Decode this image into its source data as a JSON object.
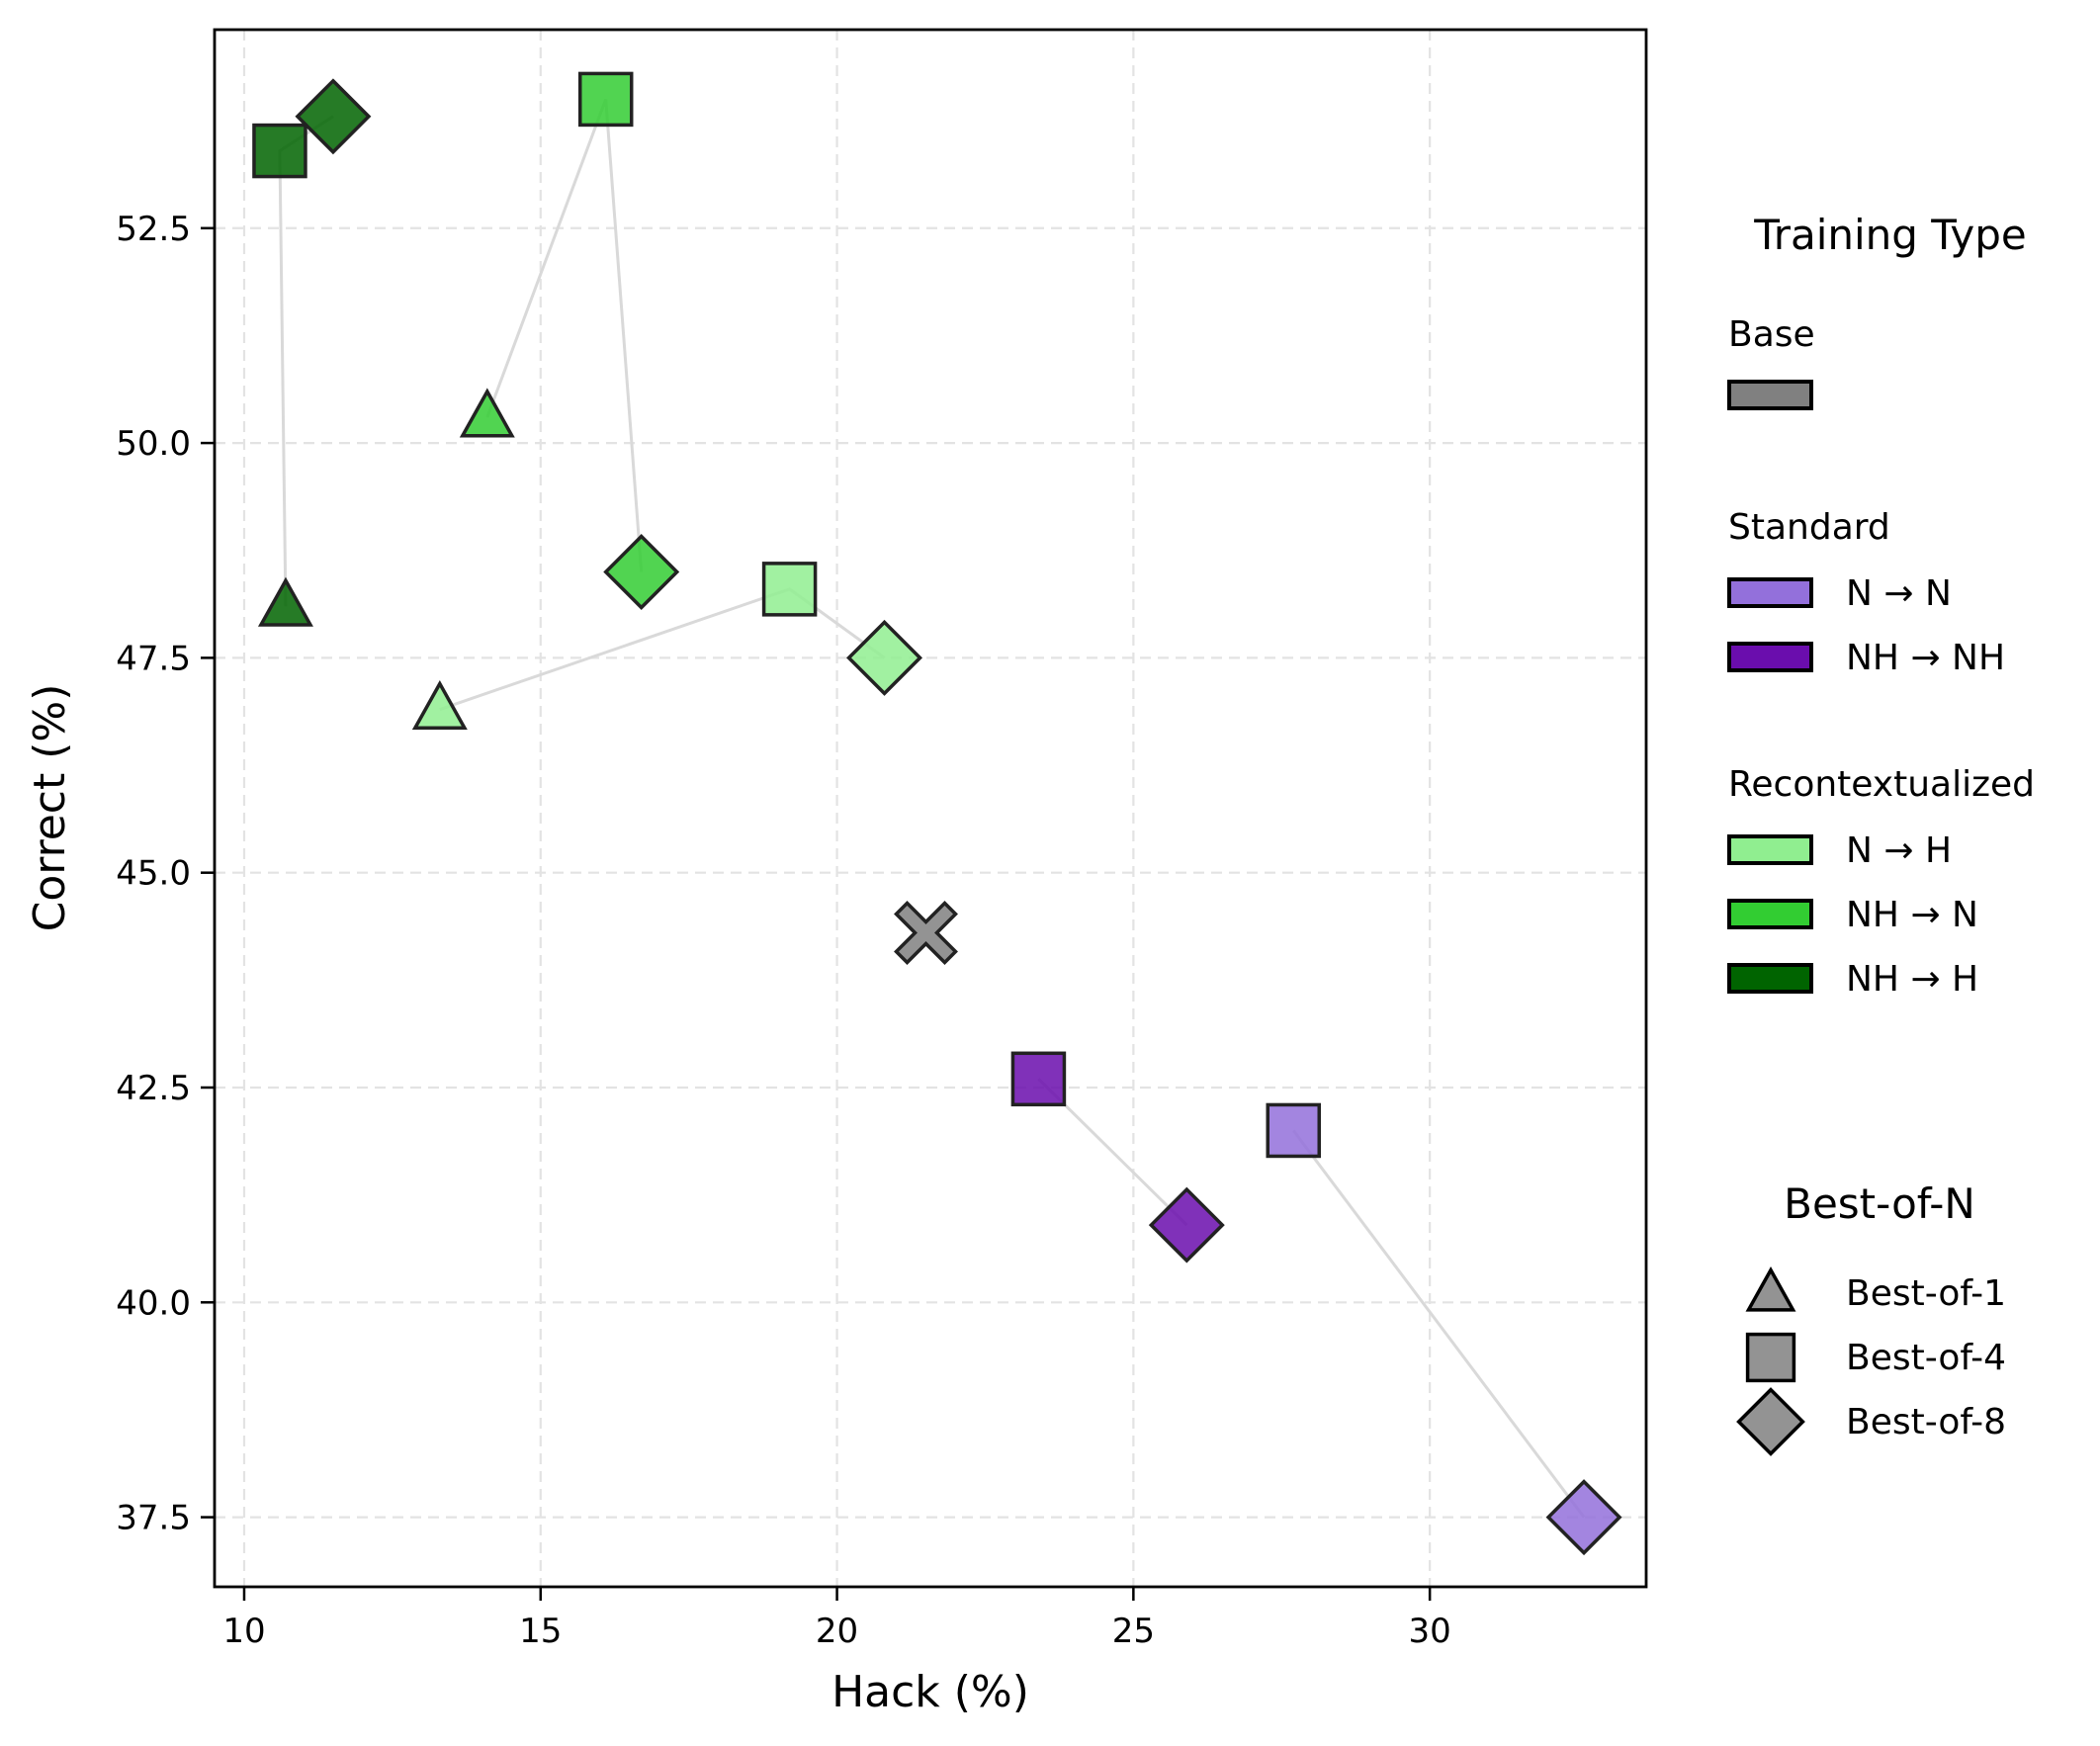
{
  "chart_data": {
    "type": "scatter",
    "title": "",
    "xlabel": "Hack (%)",
    "ylabel": "Correct (%)",
    "xlim": [
      9.5,
      33.65
    ],
    "ylim": [
      36.69,
      54.81
    ],
    "xticks": [
      10,
      15,
      20,
      25,
      30
    ],
    "xtick_labels": [
      "10",
      "15",
      "20",
      "25",
      "30"
    ],
    "yticks": [
      37.5,
      40.0,
      42.5,
      45.0,
      47.5,
      50.0,
      52.5
    ],
    "ytick_labels": [
      "37.5",
      "40.0",
      "42.5",
      "45.0",
      "47.5",
      "50.0",
      "52.5"
    ],
    "grid": true,
    "legend_placement": "right-outside",
    "markers": {
      "best_of_1": "triangle",
      "best_of_4": "square",
      "best_of_8": "diamond",
      "base": "x"
    },
    "series": [
      {
        "name": "Base",
        "group": "Base",
        "color": "#808080",
        "points": [
          {
            "best_of": "base",
            "x": 21.5,
            "y": 44.3
          }
        ]
      },
      {
        "name": "N → N",
        "group": "Standard",
        "color": "#9370DB",
        "points": [
          {
            "best_of": 4,
            "x": 27.7,
            "y": 42.0
          },
          {
            "best_of": 8,
            "x": 32.6,
            "y": 37.5
          }
        ]
      },
      {
        "name": "NH → NH",
        "group": "Standard",
        "color": "#6A0DAD",
        "points": [
          {
            "best_of": 4,
            "x": 23.4,
            "y": 42.6
          },
          {
            "best_of": 8,
            "x": 25.9,
            "y": 40.9
          }
        ]
      },
      {
        "name": "N → H",
        "group": "Recontextualized",
        "color": "#90EE90",
        "points": [
          {
            "best_of": 1,
            "x": 13.3,
            "y": 46.9
          },
          {
            "best_of": 4,
            "x": 19.2,
            "y": 48.3
          },
          {
            "best_of": 8,
            "x": 20.8,
            "y": 47.5
          }
        ]
      },
      {
        "name": "NH → N",
        "group": "Recontextualized",
        "color": "#32CD32",
        "points": [
          {
            "best_of": 1,
            "x": 14.1,
            "y": 50.3
          },
          {
            "best_of": 4,
            "x": 16.1,
            "y": 54.0
          },
          {
            "best_of": 8,
            "x": 16.7,
            "y": 48.5
          }
        ]
      },
      {
        "name": "NH → H",
        "group": "Recontextualized",
        "color": "#006400",
        "points": [
          {
            "best_of": 1,
            "x": 10.7,
            "y": 48.1
          },
          {
            "best_of": 4,
            "x": 10.6,
            "y": 53.4
          },
          {
            "best_of": 8,
            "x": 11.5,
            "y": 53.8
          }
        ]
      }
    ]
  },
  "legend": {
    "training_title": "Training Type",
    "groups": [
      {
        "label": "Base",
        "entries": [
          {
            "label": "",
            "color": "#808080"
          }
        ]
      },
      {
        "label": "Standard",
        "entries": [
          {
            "label": "N → N",
            "color": "#9370DB"
          },
          {
            "label": "NH → NH",
            "color": "#6A0DAD"
          }
        ]
      },
      {
        "label": "Recontextualized",
        "entries": [
          {
            "label": "N → H",
            "color": "#90EE90"
          },
          {
            "label": "NH → N",
            "color": "#32CD32"
          },
          {
            "label": "NH → H",
            "color": "#006400"
          }
        ]
      }
    ],
    "bestofn_title": "Best-of-N",
    "bestofn_entries": [
      {
        "label": "Best-of-1",
        "marker": "triangle"
      },
      {
        "label": "Best-of-4",
        "marker": "square"
      },
      {
        "label": "Best-of-8",
        "marker": "diamond"
      }
    ],
    "marker_color": "#808080"
  }
}
